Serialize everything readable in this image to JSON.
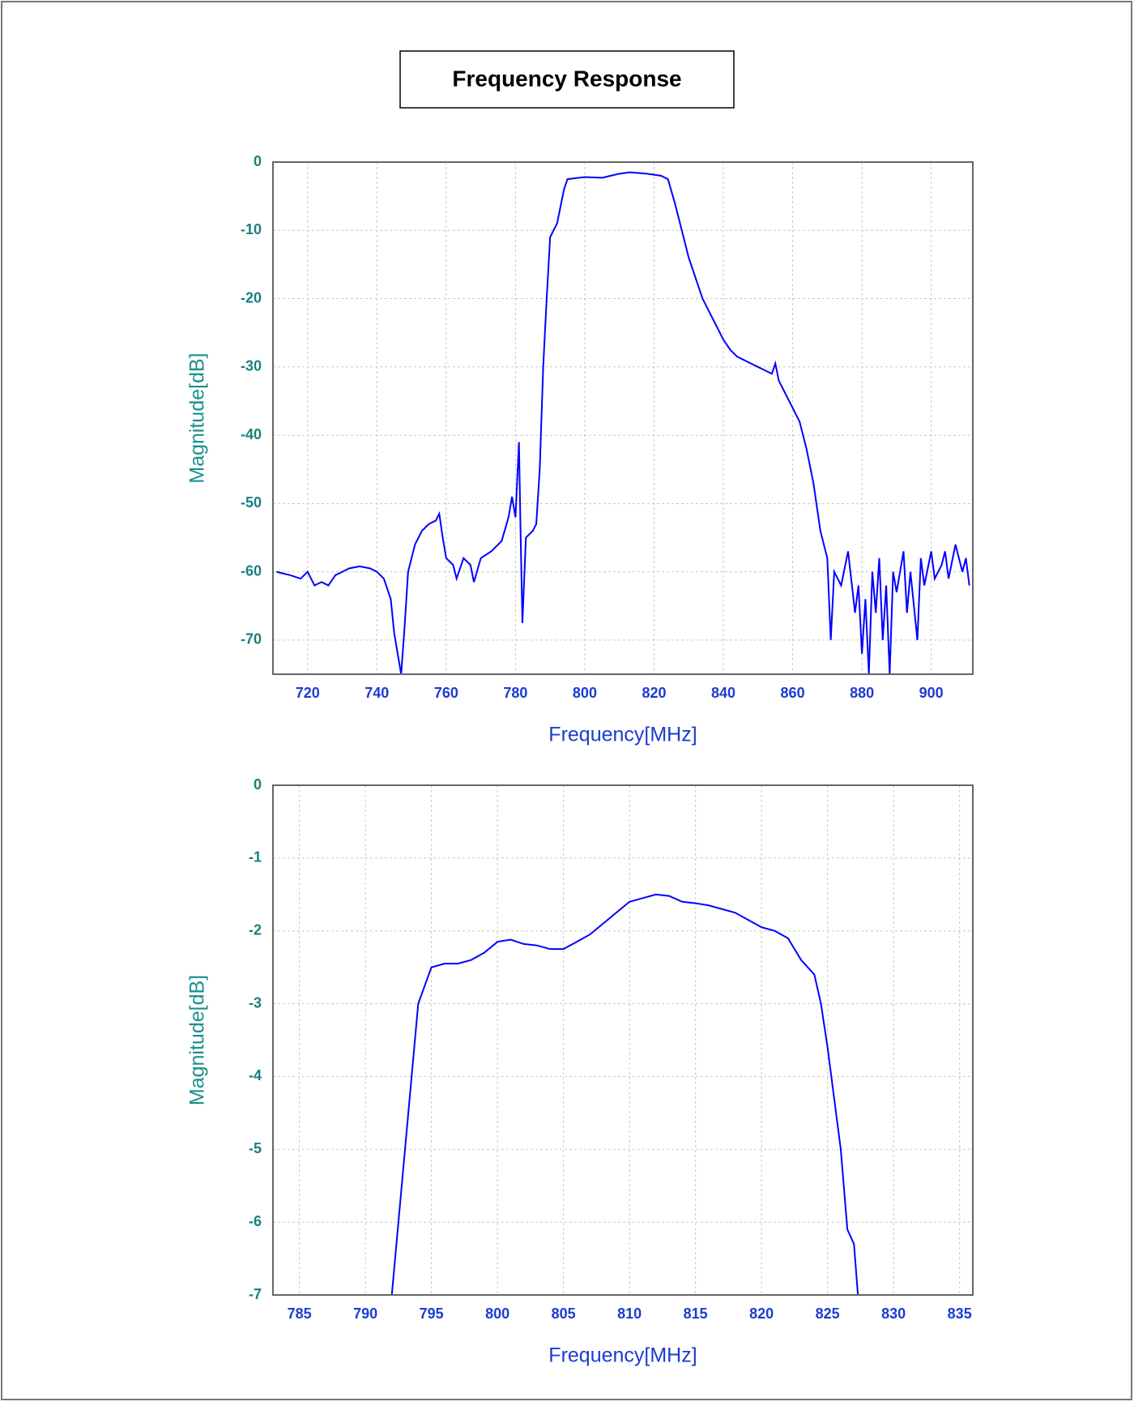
{
  "title": "Frequency Response",
  "chart_data": [
    {
      "type": "line",
      "x_label": "Frequency[MHz]",
      "y_label": "Magnitude[dB]",
      "x": [
        711,
        715,
        718,
        720,
        722,
        724,
        726,
        728,
        730,
        732,
        735,
        738,
        740,
        742,
        744,
        745,
        746,
        747,
        748,
        749,
        751,
        753,
        755,
        757,
        758,
        759,
        760,
        762,
        763,
        765,
        767,
        768,
        770,
        773,
        776,
        778,
        779,
        780,
        781,
        781.5,
        782,
        783,
        785,
        786,
        787,
        788,
        789,
        790,
        792,
        794,
        795,
        800,
        805,
        810,
        813,
        818,
        822,
        824,
        826,
        828,
        830,
        832,
        834,
        836,
        838,
        840,
        842,
        844,
        846,
        848,
        850,
        852,
        854,
        855,
        856,
        858,
        860,
        862,
        864,
        866,
        868,
        870,
        871,
        872,
        874,
        876,
        878,
        879,
        880,
        881,
        882,
        883,
        884,
        885,
        886,
        887,
        888,
        889,
        890,
        892,
        893,
        894,
        896,
        897,
        898,
        900,
        901,
        903,
        904,
        905,
        907,
        909,
        910,
        911
      ],
      "series": [
        {
          "color": "#0000ff",
          "values": [
            -60,
            -60.5,
            -61,
            -60,
            -62,
            -61.5,
            -62,
            -60.5,
            -60,
            -59.5,
            -59.2,
            -59.5,
            -60,
            -61,
            -64,
            -69,
            -72,
            -75,
            -68,
            -60,
            -56,
            -54,
            -53,
            -52.5,
            -51.5,
            -55,
            -58,
            -59,
            -61,
            -58,
            -59,
            -61.5,
            -58,
            -57,
            -55.5,
            -52,
            -49,
            -52,
            -41,
            -55,
            -67.5,
            -55,
            -54,
            -53,
            -45,
            -30,
            -20,
            -11,
            -9,
            -4,
            -2.5,
            -2.2,
            -2.3,
            -1.7,
            -1.5,
            -1.7,
            -2,
            -2.5,
            -6,
            -10,
            -14,
            -17,
            -20,
            -22,
            -24,
            -26,
            -27.5,
            -28.5,
            -29,
            -29.5,
            -30,
            -30.5,
            -31,
            -29.5,
            -32,
            -34,
            -36,
            -38,
            -42,
            -47,
            -54,
            -58,
            -70,
            -60,
            -62,
            -57,
            -66,
            -62,
            -72,
            -64,
            -75,
            -60,
            -66,
            -58,
            -70,
            -62,
            -75,
            -60,
            -63,
            -57,
            -66,
            -60,
            -70,
            -58,
            -62,
            -57,
            -61,
            -59,
            -57,
            -61,
            -56,
            -60,
            -58,
            -62
          ]
        }
      ],
      "xlim": [
        710,
        912
      ],
      "ylim": [
        -75,
        0
      ],
      "xticks": [
        720,
        740,
        760,
        780,
        800,
        820,
        840,
        860,
        880,
        900
      ],
      "yticks": [
        0,
        -10,
        -20,
        -30,
        -40,
        -50,
        -60,
        -70
      ],
      "grid": true
    },
    {
      "type": "line",
      "x_label": "Frequency[MHz]",
      "y_label": "Magnitude[dB]",
      "x": [
        792,
        793,
        794,
        795,
        796,
        797,
        798,
        799,
        800,
        801,
        802,
        803,
        804,
        805,
        806,
        807,
        808,
        809,
        810,
        811,
        812,
        813,
        814,
        815,
        816,
        817,
        818,
        819,
        820,
        821,
        822,
        823,
        824,
        824.5,
        825,
        826,
        826.5,
        827,
        827.3
      ],
      "series": [
        {
          "color": "#0000ff",
          "values": [
            -7,
            -5,
            -3,
            -2.5,
            -2.45,
            -2.45,
            -2.4,
            -2.3,
            -2.15,
            -2.12,
            -2.18,
            -2.2,
            -2.25,
            -2.25,
            -2.15,
            -2.05,
            -1.9,
            -1.75,
            -1.6,
            -1.55,
            -1.5,
            -1.52,
            -1.6,
            -1.62,
            -1.65,
            -1.7,
            -1.75,
            -1.85,
            -1.95,
            -2,
            -2.1,
            -2.4,
            -2.6,
            -3,
            -3.6,
            -5,
            -6.1,
            -6.3,
            -7
          ]
        }
      ],
      "xlim": [
        783,
        836
      ],
      "ylim": [
        -7,
        0
      ],
      "xticks": [
        785,
        790,
        795,
        800,
        805,
        810,
        815,
        820,
        825,
        830,
        835
      ],
      "yticks": [
        0,
        -1,
        -2,
        -3,
        -4,
        -5,
        -6,
        -7
      ],
      "grid": true
    }
  ]
}
